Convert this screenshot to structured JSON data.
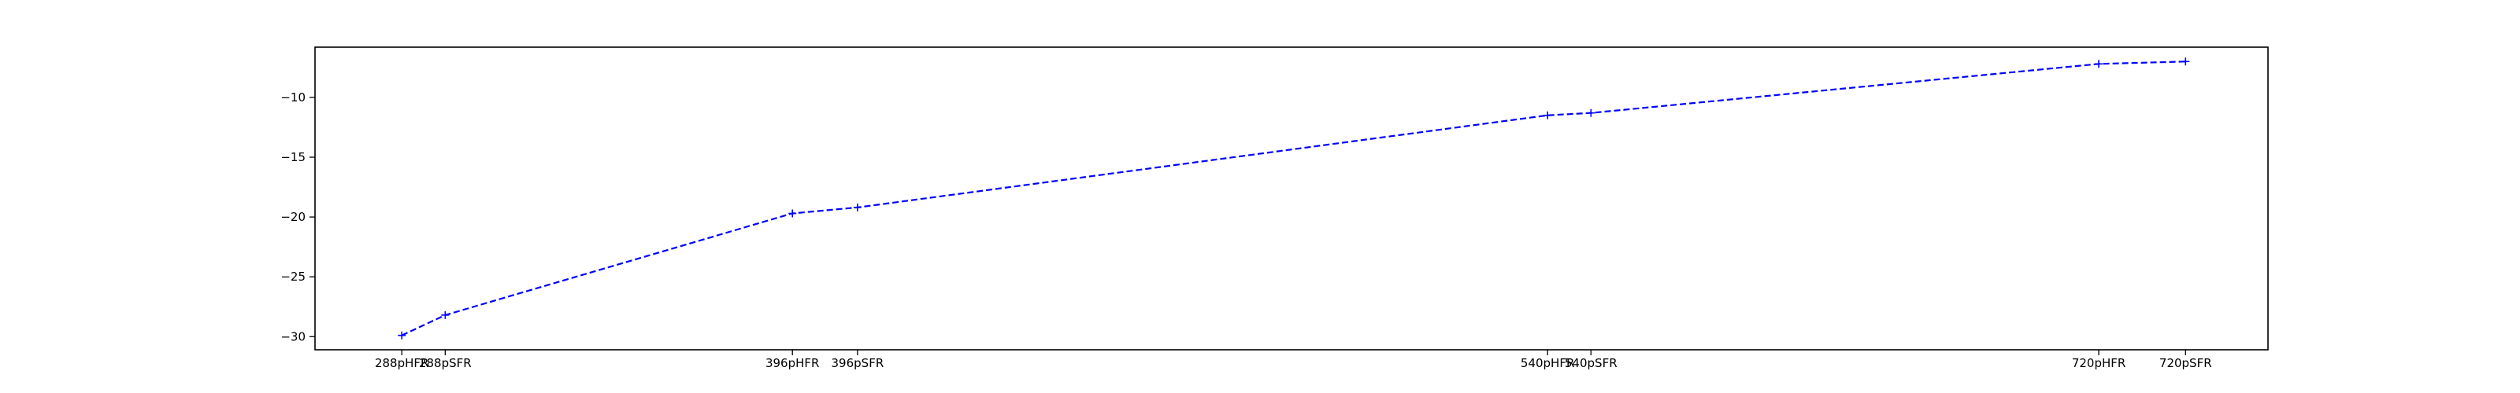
{
  "chart_data": {
    "type": "line",
    "title": "",
    "xlabel": "",
    "ylabel": "",
    "x": [
      1,
      1.5,
      5.5,
      6.25,
      14.2,
      14.7,
      20.55,
      21.55
    ],
    "categories": [
      "288pHFR",
      "288pSFR",
      "396pHFR",
      "396pSFR",
      "540pHFR",
      "540pSFR",
      "720pHFR",
      "720pSFR"
    ],
    "series": [
      {
        "values": [
          -29.9,
          -28.2,
          -19.7,
          -19.2,
          -11.5,
          -11.3,
          -7.2,
          -7.0
        ],
        "color": "#0000ff",
        "line_style": "dashed",
        "marker": "plus"
      }
    ],
    "xlim": [
      0,
      22.5
    ],
    "ylim": [
      -31.1,
      -5.8
    ],
    "yticks": [
      -30,
      -25,
      -20,
      -15,
      -10
    ],
    "ytick_labels": [
      "−30",
      "−25",
      "−20",
      "−15",
      "−10"
    ],
    "grid": false,
    "legend": "none"
  }
}
